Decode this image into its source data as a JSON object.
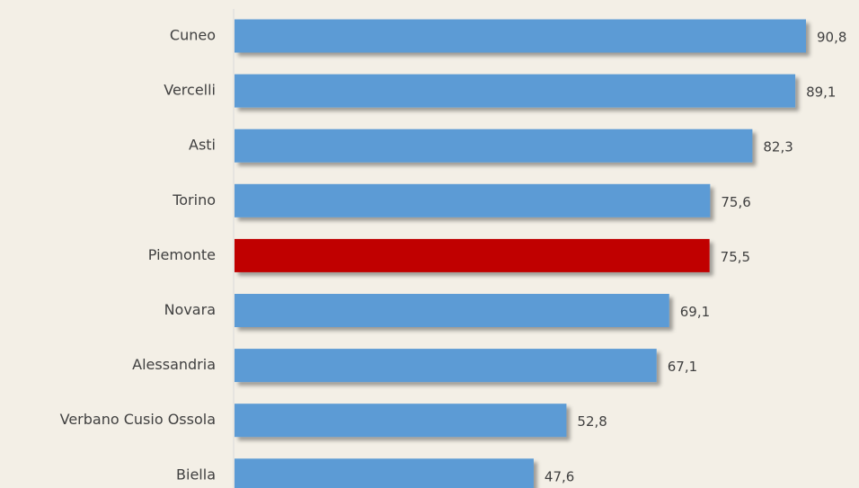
{
  "chart_data": {
    "type": "bar",
    "orientation": "horizontal",
    "categories": [
      "Cuneo",
      "Vercelli",
      "Asti",
      "Torino",
      "Piemonte",
      "Novara",
      "Alessandria",
      "Verbano Cusio Ossola",
      "Biella"
    ],
    "values": [
      90.8,
      89.1,
      82.3,
      75.6,
      75.5,
      69.1,
      67.1,
      52.8,
      47.6
    ],
    "value_labels": [
      "90,8",
      "89,1",
      "82,3",
      "75,6",
      "75,5",
      "69,1",
      "67,1",
      "52,8",
      "47,6"
    ],
    "colors": [
      "#5b9bd5",
      "#5b9bd5",
      "#5b9bd5",
      "#5b9bd5",
      "#c00000",
      "#5b9bd5",
      "#5b9bd5",
      "#5b9bd5",
      "#5b9bd5"
    ]
  }
}
